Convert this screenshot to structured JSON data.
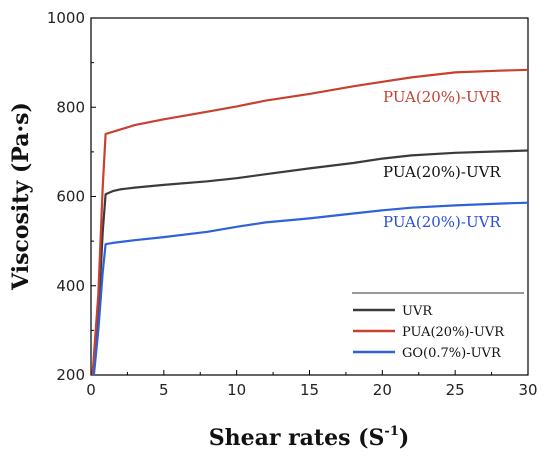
{
  "chart_data": {
    "type": "line",
    "xlabel_main": "Shear rates (S",
    "xlabel_sup": "-1",
    "xlabel_close": ")",
    "ylabel": "Viscosity (Pa·s)",
    "xlim": [
      0,
      30
    ],
    "ylim": [
      200,
      1000
    ],
    "xticks": [
      0,
      5,
      10,
      15,
      20,
      25,
      30
    ],
    "yticks": [
      200,
      400,
      600,
      800,
      1000
    ],
    "grid": false,
    "legend_position": "bottom-right",
    "annotations": [
      {
        "text": "PUA(20%)-UVR",
        "color": "#c8412f"
      },
      {
        "text": "PUA(20%)-UVR",
        "color": "#111111"
      },
      {
        "text": "PUA(20%)-UVR",
        "color": "#2b4fd6"
      }
    ],
    "series": [
      {
        "name": "UVR",
        "color": "#3b3b3b",
        "x": [
          0.1,
          0.5,
          0.8,
          1,
          1.5,
          2,
          3,
          5,
          8,
          10,
          12,
          15,
          18,
          20,
          22,
          25,
          28,
          30
        ],
        "y": [
          200,
          330,
          520,
          605,
          612,
          616,
          620,
          626,
          634,
          641,
          650,
          663,
          675,
          685,
          692,
          698,
          701,
          703
        ]
      },
      {
        "name": "PUA(20%)-UVR",
        "color": "#c8412f",
        "x": [
          0.1,
          0.5,
          0.8,
          1,
          1.5,
          2,
          3,
          5,
          8,
          10,
          12,
          15,
          18,
          20,
          22,
          25,
          28,
          30
        ],
        "y": [
          200,
          380,
          620,
          740,
          745,
          750,
          760,
          773,
          790,
          802,
          815,
          830,
          847,
          857,
          867,
          878,
          882,
          884
        ]
      },
      {
        "name": "GO(0.7%)-UVR",
        "color": "#2f62d8",
        "x": [
          0.2,
          0.5,
          0.8,
          1,
          1.5,
          2,
          3,
          5,
          8,
          10,
          12,
          15,
          18,
          20,
          22,
          25,
          28,
          30
        ],
        "y": [
          200,
          300,
          430,
          493,
          496,
          498,
          502,
          509,
          521,
          532,
          542,
          551,
          562,
          569,
          575,
          580,
          584,
          586
        ]
      }
    ]
  }
}
